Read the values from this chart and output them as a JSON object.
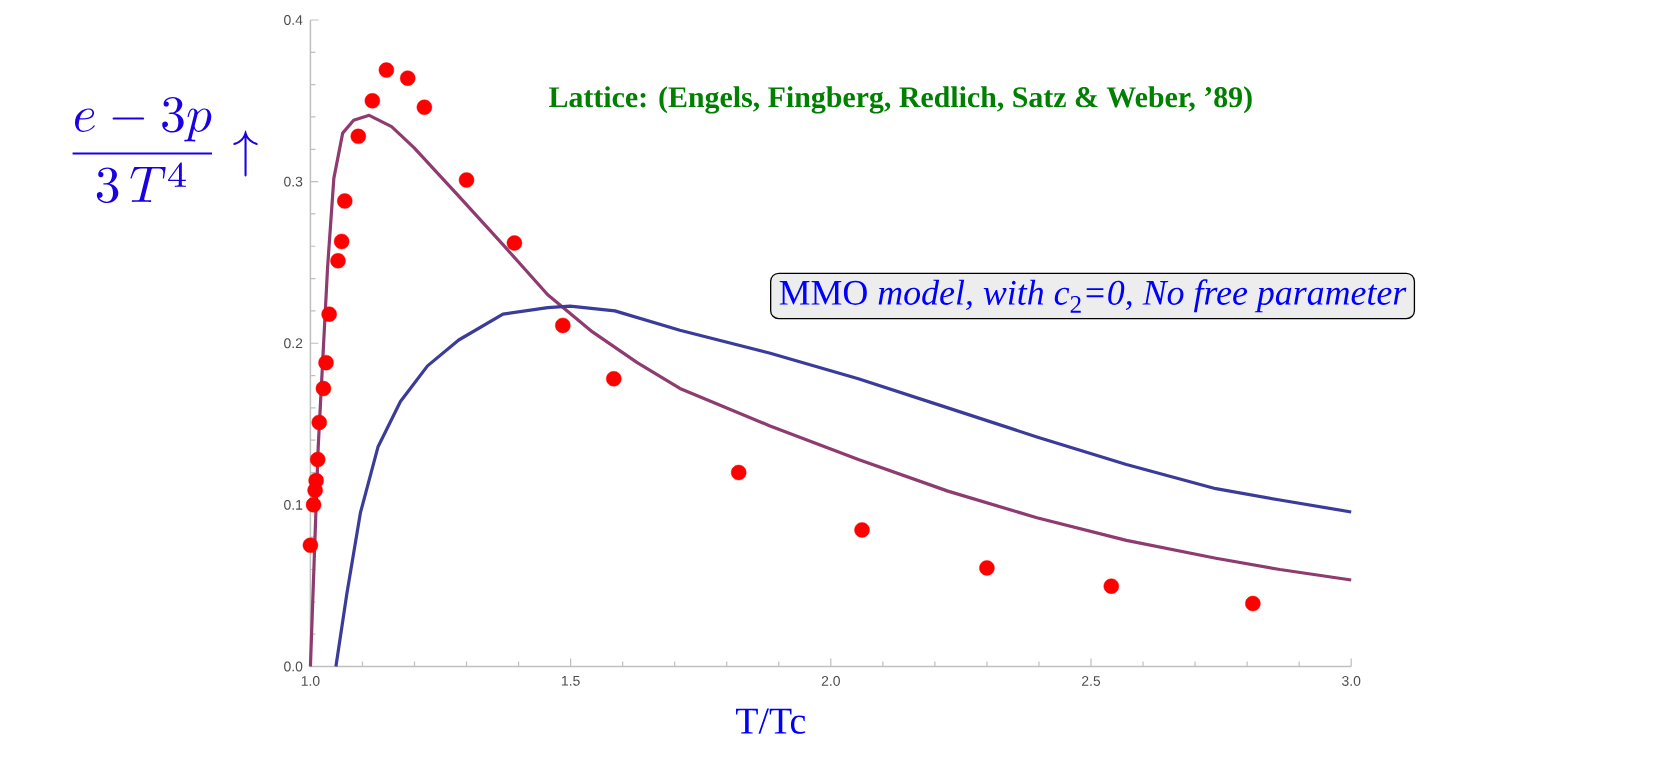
{
  "chart_data": {
    "type": "line",
    "xlabel": "T/Tc",
    "ylabel": "\\frac{e-3p}{3\\,T^{4}}\\uparrow",
    "annotations": [
      "**Lattice:** (Engels, Fingberg, Redlich, Satz & Weber, ’89)",
      "MMO *model, with c*$_{2}$*=0, No free parameter*"
    ],
    "xlim": [
      1.0,
      3.0
    ],
    "ylim": [
      0.0,
      0.4
    ],
    "xticks": [
      {
        "value": 1.0,
        "label": "1.0"
      },
      {
        "value": 1.5,
        "label": "1.5"
      },
      {
        "value": 2.0,
        "label": "2.0"
      },
      {
        "value": 2.5,
        "label": "2.5"
      },
      {
        "value": 3.0,
        "label": "3.0"
      }
    ],
    "yticks": [
      {
        "value": 0.0,
        "label": "0.0"
      },
      0.1,
      0.2,
      0.3,
      0.4
    ],
    "series": [
      {
        "color": "#8e3b6f",
        "marker": "none",
        "x": [
          1.0,
          1.015,
          1.033,
          1.045,
          1.062,
          1.083,
          1.113,
          1.156,
          1.199,
          1.285,
          1.37,
          1.456,
          1.542,
          1.628,
          1.71,
          1.882,
          2.053,
          2.225,
          2.396,
          2.568,
          2.74,
          2.863,
          3.0
        ],
        "values": [
          0.0,
          0.136,
          0.247,
          0.302,
          0.33,
          0.338,
          0.341,
          0.334,
          0.321,
          0.291,
          0.261,
          0.23,
          0.207,
          0.188,
          0.172,
          0.149,
          0.128,
          0.1085,
          0.092,
          0.078,
          0.067,
          0.06,
          0.0535
        ]
      },
      {
        "color": "#3b3b9b",
        "marker": "none",
        "x": [
          1.049,
          1.07,
          1.096,
          1.13,
          1.173,
          1.225,
          1.285,
          1.37,
          1.456,
          1.499,
          1.585,
          1.71,
          1.882,
          2.053,
          2.225,
          2.396,
          2.568,
          2.74,
          2.863,
          3.0
        ],
        "values": [
          0.0,
          0.045,
          0.095,
          0.136,
          0.164,
          0.186,
          0.202,
          0.218,
          0.222,
          0.223,
          0.22,
          0.208,
          0.194,
          0.178,
          0.16,
          0.142,
          0.125,
          0.11,
          0.103,
          0.0956
        ]
      },
      {
        "type": "scatter",
        "color": "#ff0000",
        "marker": "circle",
        "x": [
          1.0,
          1.004,
          1.006,
          1.009,
          1.011,
          1.014,
          1.017,
          1.025,
          1.03,
          1.036,
          1.053,
          1.06,
          1.066,
          1.092,
          1.119,
          1.146,
          1.187,
          1.219,
          1.3,
          1.392,
          1.485,
          1.583,
          1.823,
          2.06,
          2.3,
          2.539,
          2.811
        ],
        "values": [
          0.075,
          null,
          0.1,
          0.109,
          0.115,
          0.128,
          0.151,
          0.172,
          0.188,
          0.218,
          0.251,
          0.263,
          0.288,
          0.328,
          0.35,
          0.369,
          0.364,
          0.346,
          0.301,
          0.262,
          0.211,
          0.178,
          0.12,
          0.0845,
          0.061,
          0.0497,
          0.0389
        ]
      }
    ]
  }
}
